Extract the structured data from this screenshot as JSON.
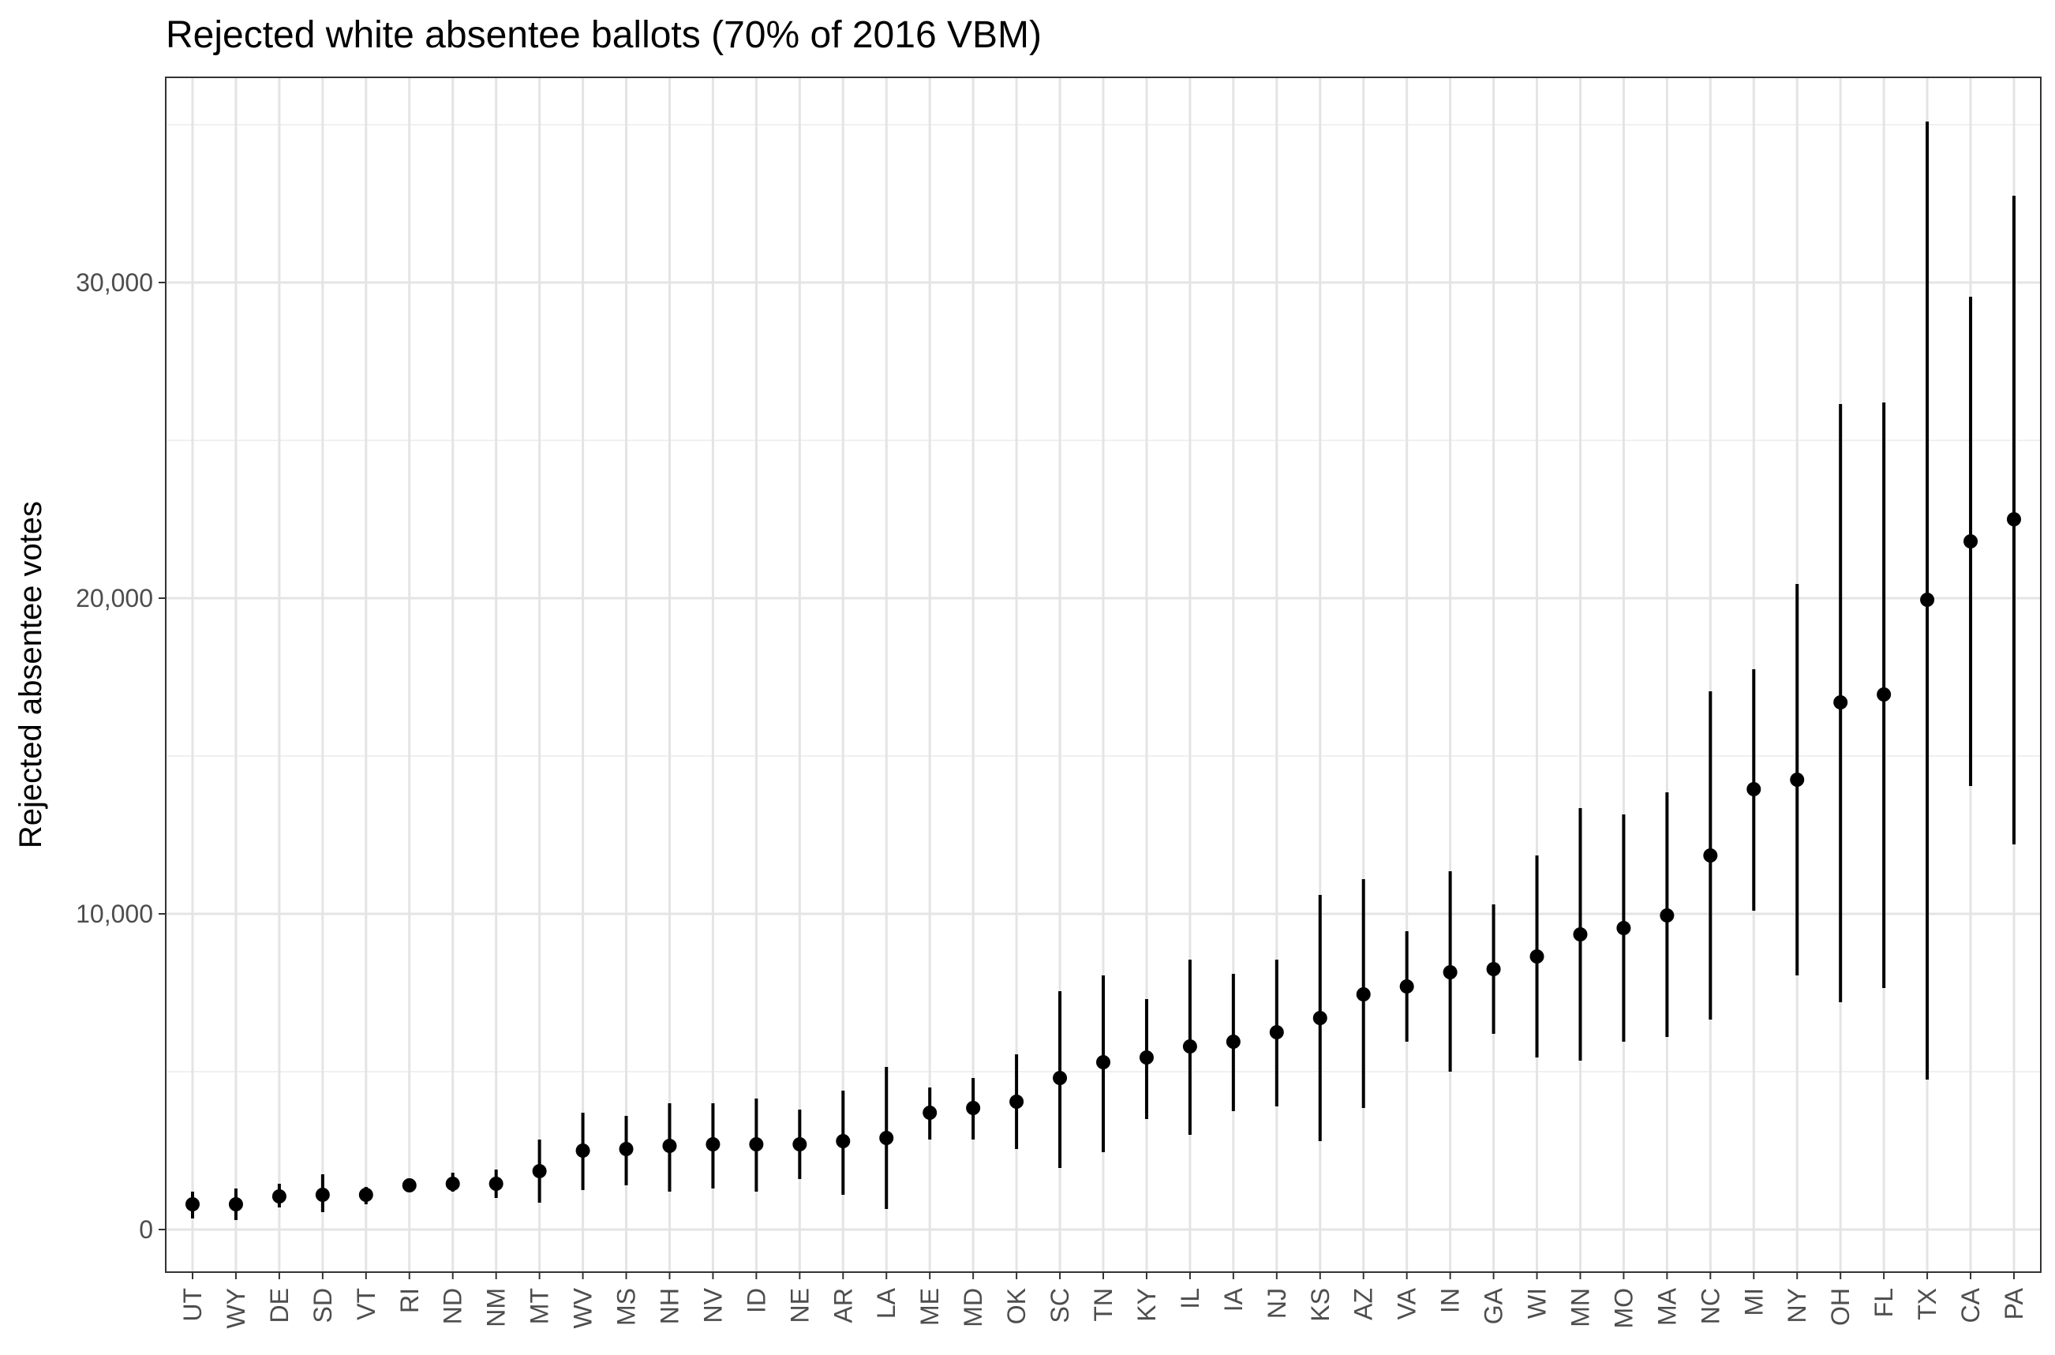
{
  "chart_data": {
    "type": "pointrange",
    "title": "Rejected white absentee ballots (70% of 2016 VBM)",
    "xlabel": "",
    "ylabel": "Rejected absentee votes",
    "ylim": [
      -1350,
      36500
    ],
    "y_ticks": [
      0,
      10000,
      20000,
      30000
    ],
    "y_tick_labels": [
      "0",
      "10,000",
      "20,000",
      "30,000"
    ],
    "grid": true,
    "categories": [
      "UT",
      "WY",
      "DE",
      "SD",
      "VT",
      "RI",
      "ND",
      "NM",
      "MT",
      "WV",
      "MS",
      "NH",
      "NV",
      "ID",
      "NE",
      "AR",
      "LA",
      "ME",
      "MD",
      "OK",
      "SC",
      "TN",
      "KY",
      "IL",
      "IA",
      "NJ",
      "KS",
      "AZ",
      "VA",
      "IN",
      "GA",
      "WI",
      "MN",
      "MO",
      "MA",
      "NC",
      "MI",
      "NY",
      "OH",
      "FL",
      "TX",
      "CA",
      "PA"
    ],
    "values": [
      800,
      800,
      1050,
      1100,
      1100,
      1400,
      1450,
      1450,
      1850,
      2500,
      2550,
      2650,
      2700,
      2700,
      2700,
      2800,
      2900,
      3700,
      3850,
      4050,
      4800,
      5300,
      5450,
      5800,
      5950,
      6250,
      6700,
      7450,
      7700,
      8150,
      8250,
      8650,
      9350,
      9550,
      9950,
      11850,
      13950,
      14250,
      16700,
      16950,
      19950,
      21800,
      22500
    ],
    "lower": [
      350,
      300,
      700,
      550,
      800,
      1200,
      1200,
      1000,
      850,
      1250,
      1400,
      1200,
      1300,
      1200,
      1600,
      1100,
      650,
      2850,
      2850,
      2550,
      1950,
      2450,
      3500,
      3000,
      3750,
      3900,
      2800,
      3850,
      5950,
      5000,
      6200,
      5450,
      5350,
      5950,
      6100,
      6650,
      10100,
      8050,
      7200,
      7650,
      4750,
      14050,
      12200
    ],
    "upper": [
      1200,
      1300,
      1450,
      1750,
      1350,
      1600,
      1800,
      1900,
      2850,
      3700,
      3600,
      4000,
      4000,
      4150,
      3800,
      4400,
      5150,
      4500,
      4800,
      5550,
      7550,
      8050,
      7300,
      8550,
      8100,
      8550,
      10600,
      11100,
      9450,
      11350,
      10300,
      11850,
      13350,
      13150,
      13850,
      17050,
      17750,
      20450,
      26150,
      26200,
      35100,
      29550,
      32750
    ]
  }
}
